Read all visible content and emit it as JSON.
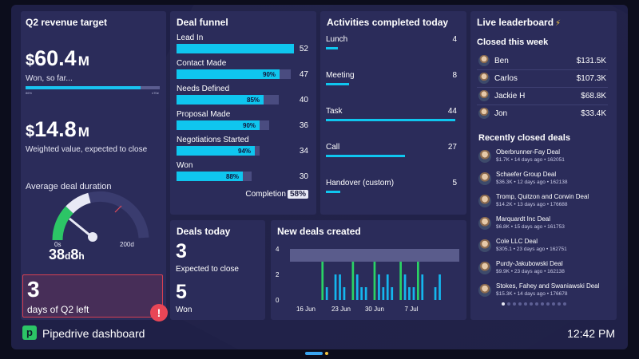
{
  "q2": {
    "title": "Q2 revenue target",
    "won_cur": "$",
    "won_num": "60.4",
    "won_suf": "M",
    "won_label": "Won, so far...",
    "progress_fraction": 0.86,
    "progress_left": "86%",
    "progress_right": "≤70≠",
    "weighted_cur": "$",
    "weighted_num": "14.8",
    "weighted_suf": "M",
    "weighted_label": "Weighted value, expected to close",
    "duration_title": "Average deal duration",
    "gauge_min": "0s",
    "gauge_max": "200d",
    "duration_days": "38",
    "duration_d": "d",
    "duration_hours": "8",
    "duration_h": "h",
    "days_left_num": "3",
    "days_left_label": "days of Q2 left"
  },
  "funnel": {
    "title": "Deal funnel",
    "stages": [
      {
        "label": "Lead In",
        "value": "52",
        "pct": "",
        "fill": 1.0
      },
      {
        "label": "Contact Made",
        "value": "47",
        "pct": "90%",
        "fill": 0.9
      },
      {
        "label": "Needs Defined",
        "value": "40",
        "pct": "85%",
        "fill": 0.85
      },
      {
        "label": "Proposal Made",
        "value": "36",
        "pct": "90%",
        "fill": 0.9
      },
      {
        "label": "Negotiations Started",
        "value": "34",
        "pct": "94%",
        "fill": 0.94
      },
      {
        "label": "Won",
        "value": "30",
        "pct": "88%",
        "fill": 0.88
      }
    ],
    "completion_label": "Completion",
    "completion_value": "58%"
  },
  "activities": {
    "title": "Activities completed today",
    "items": [
      {
        "label": "Lunch",
        "value": "4"
      },
      {
        "label": "Meeting",
        "value": "8"
      },
      {
        "label": "Task",
        "value": "44"
      },
      {
        "label": "Call",
        "value": "27"
      },
      {
        "label": "Handover (custom)",
        "value": "5"
      }
    ]
  },
  "leaderboard": {
    "title": "Live leaderboard",
    "title_icon": "⚡",
    "closed_title": "Closed this week",
    "people": [
      {
        "name": "Ben",
        "amount": "$131.5K"
      },
      {
        "name": "Carlos",
        "amount": "$107.3K"
      },
      {
        "name": "Jackie H",
        "amount": "$68.8K"
      },
      {
        "name": "Jon",
        "amount": "$33.4K"
      }
    ],
    "recent_title": "Recently closed deals",
    "deals": [
      {
        "name": "Oberbrunner-Fay Deal",
        "meta": "$1.7K • 14 days ago • 162051"
      },
      {
        "name": "Schaefer Group Deal",
        "meta": "$36.3K • 12 days ago • 162138"
      },
      {
        "name": "Tromp, Quitzon and Corwin Deal",
        "meta": "$14.2K • 13 days ago • 176688"
      },
      {
        "name": "Marquardt Inc Deal",
        "meta": "$6.8K • 15 days ago • 161753"
      },
      {
        "name": "Cole LLC Deal",
        "meta": "$305.1 • 23 days ago • 162751"
      },
      {
        "name": "Purdy-Jakubowski Deal",
        "meta": "$9.9K • 23 days ago • 162138"
      },
      {
        "name": "Stokes, Fahey and Swaniawski Deal",
        "meta": "$15.3K • 14 days ago • 176678"
      }
    ]
  },
  "deals_today": {
    "title": "Deals today",
    "expected_num": "3",
    "expected_label": "Expected to close",
    "won_num": "5",
    "won_label": "Won"
  },
  "new_deals": {
    "title": "New deals created"
  },
  "chart_data": {
    "type": "bar",
    "title": "New deals created",
    "yticks": [
      "0",
      "2",
      "4"
    ],
    "ylim": [
      0,
      4
    ],
    "xticks": [
      "16 Jun",
      "23 Jun",
      "30 Jun",
      "7 Jul"
    ],
    "values": [
      0,
      0,
      0,
      0,
      0,
      0,
      0,
      3,
      1,
      0,
      2,
      2,
      1,
      0,
      3,
      2,
      1,
      1,
      0,
      3,
      2,
      1,
      2,
      1,
      0,
      3,
      2,
      1,
      1,
      3,
      2,
      0,
      0,
      1,
      2,
      0,
      0,
      0,
      0
    ],
    "series_colors": {
      "green": "#2ad365",
      "blue": "#15b6ee"
    },
    "target_band": [
      3,
      4
    ]
  },
  "footer": {
    "title": "Pipedrive dashboard",
    "clock": "12:42 PM"
  }
}
